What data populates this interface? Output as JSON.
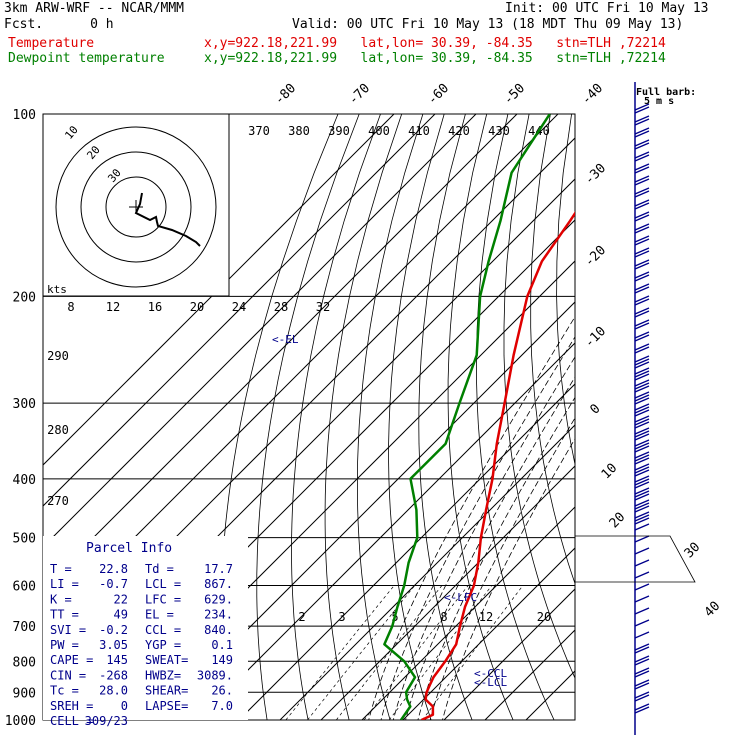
{
  "header": {
    "model": "3km ARW-WRF -- NCAR/MMM",
    "init": "Init: 00 UTC Fri 10 May 13",
    "fcst": "Fcst.      0 h",
    "valid": "Valid: 00 UTC Fri 10 May 13 (18 MDT Thu 09 May 13)",
    "temp_label": "Temperature",
    "temp_loc": "x,y=922.18,221.99   lat,lon= 30.39, -84.35   stn=TLH ,72214",
    "dew_label": "Dewpoint temperature",
    "dew_loc": "x,y=922.18,221.99   lat,lon= 30.39, -84.35   stn=TLH ,72214"
  },
  "colors": {
    "temperature": "#e00000",
    "dewpoint": "#008000",
    "parcel_box": "#00008b",
    "barbs": "#00008b",
    "hodograph": "#000000"
  },
  "barb_title": {
    "line1": "Full barb:",
    "line2": "5 m s"
  },
  "parcel": {
    "title": "Parcel Info",
    "rows": [
      {
        "l1": "T   =",
        "v1": "22.8",
        "l2": "Td =",
        "v2": "17.7"
      },
      {
        "l1": "LI  =",
        "v1": "-0.7",
        "l2": "LCL =",
        "v2": "867."
      },
      {
        "l1": "K   =",
        "v1": "22",
        "l2": "LFC =",
        "v2": "629."
      },
      {
        "l1": "TT  =",
        "v1": "49",
        "l2": "EL  =",
        "v2": "234."
      },
      {
        "l1": "SVI =",
        "v1": "-0.2",
        "l2": "CCL =",
        "v2": "840."
      },
      {
        "l1": "PW  =",
        "v1": "3.05",
        "l2": "YGP =",
        "v2": "0.1"
      },
      {
        "l1": "CAPE =",
        "v1": "145",
        "l2": "SWEAT=",
        "v2": "149"
      },
      {
        "l1": "CIN =",
        "v1": "-268",
        "l2": "HWBZ=",
        "v2": "3089."
      },
      {
        "l1": "Tc  =",
        "v1": "28.0",
        "l2": "SHEAR=",
        "v2": "26."
      },
      {
        "l1": "SREH =",
        "v1": "0",
        "l2": "LAPSE=",
        "v2": "7.0"
      },
      {
        "l1": "CELL =",
        "v1": "309/23",
        "l2": "",
        "v2": ""
      }
    ]
  },
  "annotations": {
    "el": "<-EL",
    "lfc": "<-LFC",
    "ccl": "<-CCL",
    "lcl": "<-LCL",
    "kts": "kts"
  },
  "chart_data": {
    "type": "line",
    "title": "",
    "pressure_levels": [
      100,
      200,
      300,
      400,
      500,
      600,
      700,
      800,
      900,
      1000
    ],
    "isotherm_labels": [
      "-80",
      "-70",
      "-60",
      "-50",
      "-40",
      "-30",
      "-20",
      "-10",
      "0",
      "10",
      "20",
      "30",
      "40"
    ],
    "theta_labels": [
      "370",
      "380",
      "390",
      "400",
      "410",
      "420",
      "430",
      "440"
    ],
    "hodo_speed_labels": [
      "8",
      "12",
      "16",
      "20",
      "24",
      "28",
      "32"
    ],
    "left_theta_labels": [
      "290",
      "280",
      "270"
    ],
    "mixing_ratio_labels": [
      "2",
      "3",
      "5",
      "8",
      "12",
      "20"
    ],
    "hodo_ring_labels": [
      "30",
      "20",
      "10"
    ],
    "series": [
      {
        "name": "Temperature",
        "points": [
          [
            1000,
            24.5
          ],
          [
            980,
            26
          ],
          [
            950,
            24
          ],
          [
            925,
            20.5
          ],
          [
            900,
            19
          ],
          [
            875,
            18
          ],
          [
            850,
            17
          ],
          [
            800,
            16
          ],
          [
            750,
            14.5
          ],
          [
            700,
            11
          ],
          [
            650,
            7.5
          ],
          [
            600,
            4.5
          ],
          [
            550,
            0
          ],
          [
            500,
            -5.5
          ],
          [
            450,
            -11
          ],
          [
            400,
            -17
          ],
          [
            350,
            -24.5
          ],
          [
            300,
            -32.5
          ],
          [
            250,
            -42
          ],
          [
            200,
            -53
          ],
          [
            175,
            -58
          ],
          [
            150,
            -61
          ],
          [
            125,
            -65
          ],
          [
            100,
            -69
          ]
        ]
      },
      {
        "name": "Dewpoint temperature",
        "points": [
          [
            1000,
            19.5
          ],
          [
            950,
            18.5
          ],
          [
            925,
            16
          ],
          [
            900,
            14
          ],
          [
            850,
            12.5
          ],
          [
            800,
            6
          ],
          [
            750,
            -3
          ],
          [
            700,
            -5.5
          ],
          [
            650,
            -9
          ],
          [
            600,
            -12.5
          ],
          [
            550,
            -17
          ],
          [
            500,
            -21
          ],
          [
            450,
            -28
          ],
          [
            400,
            -37
          ],
          [
            350,
            -37
          ],
          [
            300,
            -43.5
          ],
          [
            250,
            -51
          ],
          [
            200,
            -64.5
          ],
          [
            175,
            -71
          ],
          [
            150,
            -78
          ],
          [
            125,
            -87
          ],
          [
            100,
            -92
          ]
        ]
      }
    ]
  }
}
